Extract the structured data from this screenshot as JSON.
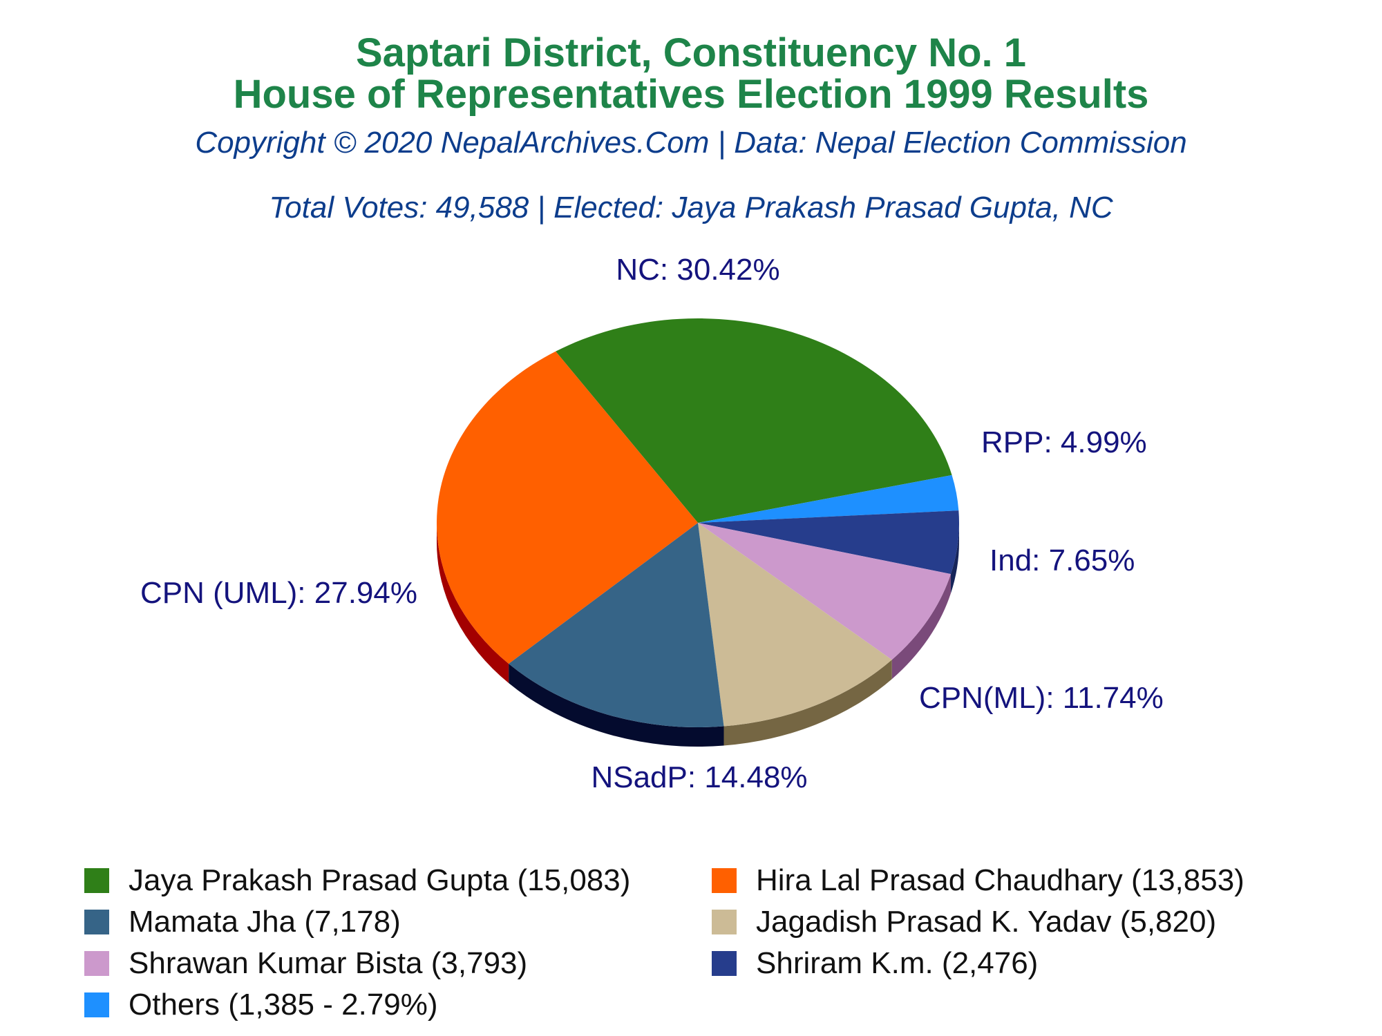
{
  "header": {
    "title_line1": "Saptari District, Constituency No. 1",
    "title_line2": "House of Representatives Election 1999 Results",
    "copyright": "Copyright © 2020 NepalArchives.Com | Data: Nepal Election Commission",
    "totals": "Total Votes: 49,588 | Elected: Jaya Prakash Prasad Gupta, NC"
  },
  "chart_data": {
    "type": "pie",
    "total_votes": 49588,
    "slices": [
      {
        "party": "NC",
        "label": "NC: 30.42%",
        "percent": 30.42,
        "color": "#2f7f18",
        "side_color": "#1c4d0e"
      },
      {
        "party": "Others",
        "label": "",
        "percent": 2.79,
        "color": "#1e90ff",
        "side_color": "#1060b0"
      },
      {
        "party": "RPP",
        "label": "RPP: 4.99%",
        "percent": 4.99,
        "color": "#263d8c",
        "side_color": "#16255a"
      },
      {
        "party": "Ind",
        "label": "Ind: 7.65%",
        "percent": 7.65,
        "color": "#cc99cc",
        "side_color": "#7a4a7a"
      },
      {
        "party": "CPN(ML)",
        "label": "CPN(ML): 11.74%",
        "percent": 11.74,
        "color": "#ccbb96",
        "side_color": "#756643"
      },
      {
        "party": "NSadP",
        "label": "NSadP: 14.48%",
        "percent": 14.48,
        "color": "#366487",
        "side_color": "#040b2e"
      },
      {
        "party": "CPN (UML)",
        "label": "CPN (UML): 27.94%",
        "percent": 27.94,
        "color": "#ff6000",
        "side_color": "#a30000"
      }
    ]
  },
  "legend": [
    {
      "text": "Jaya Prakash Prasad Gupta (15,083)",
      "color": "#2f7f18"
    },
    {
      "text": "Hira Lal Prasad Chaudhary (13,853)",
      "color": "#ff6000"
    },
    {
      "text": "Mamata Jha (7,178)",
      "color": "#366487"
    },
    {
      "text": "Jagadish Prasad K. Yadav (5,820)",
      "color": "#ccbb96"
    },
    {
      "text": "Shrawan Kumar Bista (3,793)",
      "color": "#cc99cc"
    },
    {
      "text": "Shriram K.m. (2,476)",
      "color": "#263d8c"
    },
    {
      "text": "Others (1,385 - 2.79%)",
      "color": "#1e90ff"
    }
  ]
}
